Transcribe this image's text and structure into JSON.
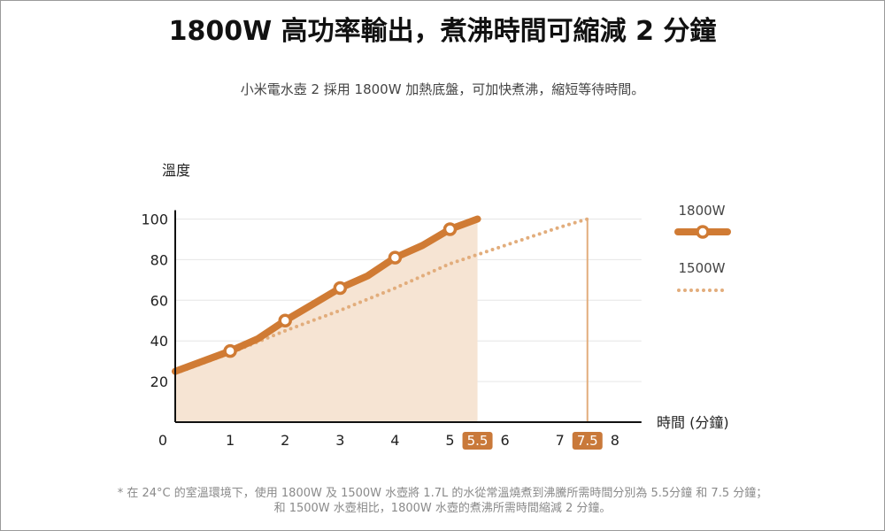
{
  "title": "1800W 高功率輸出，煮沸時間可縮減 2 分鐘",
  "subtitle": "小米電水壺 2 採用 1800W 加熱底盤，可加快煮沸，縮短等待時間。",
  "footnote": [
    "* 在 24°C 的室溫環境下，使用 1800W 及 1500W 水壺將 1.7L 的水從常溫燒煮到沸騰所需時間分別為 5.5分鐘 和 7.5 分鐘；",
    "和 1500W 水壺相比，1800W 水壺的煮沸所需時間縮減 2 分鐘。"
  ],
  "colors": {
    "series_1800": "#d07b34",
    "series_1500": "#e2ad7c",
    "fill": "#f6e4d3",
    "badge": "#c9793a",
    "grid": "#e6e6e6"
  },
  "chart_data": {
    "type": "line",
    "ylabel": "溫度",
    "xlabel": "時間 (分鐘)",
    "xlim": [
      0,
      8
    ],
    "ylim": [
      0,
      100
    ],
    "x_ticks": [
      "0",
      "1",
      "2",
      "3",
      "4",
      "5",
      "5.5",
      "6",
      "7",
      "7.5",
      "8"
    ],
    "y_ticks": [
      "20",
      "40",
      "60",
      "80",
      "100"
    ],
    "highlighted_x_ticks": [
      "5.5",
      "7.5"
    ],
    "grid": true,
    "legend_position": "right",
    "series": [
      {
        "name": "1800W",
        "style": "solid-with-markers",
        "x": [
          0,
          1,
          1.5,
          2,
          2.5,
          3,
          3.5,
          4,
          4.5,
          5,
          5.5
        ],
        "y": [
          25,
          35,
          41,
          50,
          58,
          66,
          72,
          81,
          87,
          95,
          100
        ],
        "markers": [
          1,
          2,
          3,
          4,
          5
        ]
      },
      {
        "name": "1500W",
        "style": "dotted",
        "x": [
          0,
          1,
          2,
          3,
          4,
          5,
          6,
          7,
          7.5
        ],
        "y": [
          24,
          34,
          45,
          55,
          66,
          78,
          87,
          96,
          100
        ]
      }
    ]
  }
}
